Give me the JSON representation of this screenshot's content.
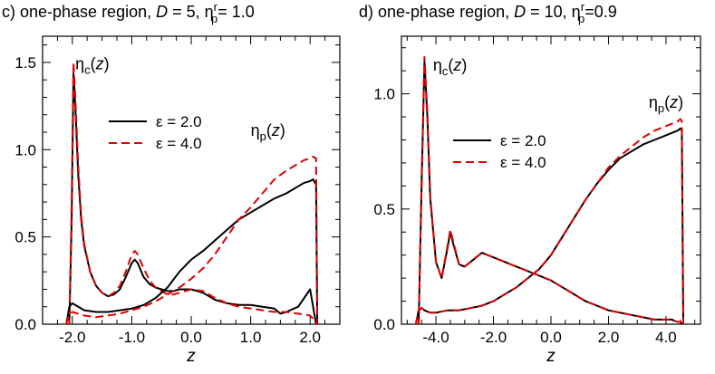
{
  "chart_data": [
    {
      "type": "line",
      "panel": "c",
      "title": {
        "prefix": "c) one-phase region, ",
        "param1_name": "D",
        "param1_value": " = 5, ",
        "param2_name": "η",
        "param2_sub": "p",
        "param2_sup": "r",
        "param2_value": "= 1.0"
      },
      "xlabel": "z",
      "ylabel": "",
      "xlim": [
        -2.5,
        2.5
      ],
      "ylim": [
        0,
        1.65
      ],
      "xticks": [
        -2.0,
        -1.0,
        0.0,
        1.0,
        2.0
      ],
      "xtick_labels": [
        "-2.0",
        "-1.0",
        "0.0",
        "1.0",
        "2.0"
      ],
      "yticks": [
        0.0,
        0.5,
        1.0,
        1.5
      ],
      "ytick_labels": [
        "0.0",
        "0.5",
        "1.0",
        "1.5"
      ],
      "annotations": [
        {
          "label_main": "η",
          "label_sub": "c",
          "label_arg": "(z)",
          "x": -1.95,
          "y": 1.46
        },
        {
          "label_main": "η",
          "label_sub": "p",
          "label_arg": "(z)",
          "x": 1.0,
          "y": 1.08
        }
      ],
      "legend": {
        "placement": "upper-center",
        "entries": [
          {
            "label": "ε = 2.0",
            "color": "#000000",
            "dash": "solid"
          },
          {
            "label": "ε = 4.0",
            "color": "#e00000",
            "dash": "dashed"
          }
        ]
      },
      "series": [
        {
          "name": "η_c(z), ε = 2.0",
          "color": "#000000",
          "dash": "solid",
          "x": [
            -2.1,
            -2.05,
            -2.01,
            -1.98,
            -1.95,
            -1.9,
            -1.85,
            -1.8,
            -1.7,
            -1.6,
            -1.5,
            -1.4,
            -1.3,
            -1.2,
            -1.1,
            -1.0,
            -0.95,
            -0.9,
            -0.8,
            -0.7,
            -0.6,
            -0.5,
            -0.4,
            -0.3,
            -0.2,
            0.0,
            0.2,
            0.4,
            0.6,
            0.8,
            1.0,
            1.2,
            1.4,
            1.5,
            1.6,
            1.8,
            2.0,
            2.05,
            2.1
          ],
          "y": [
            0.0,
            0.0,
            0.6,
            1.44,
            1.25,
            0.85,
            0.6,
            0.45,
            0.3,
            0.22,
            0.18,
            0.16,
            0.17,
            0.2,
            0.27,
            0.35,
            0.37,
            0.35,
            0.27,
            0.23,
            0.21,
            0.2,
            0.19,
            0.19,
            0.2,
            0.2,
            0.18,
            0.14,
            0.12,
            0.11,
            0.11,
            0.1,
            0.09,
            0.06,
            0.07,
            0.1,
            0.2,
            0.1,
            0.0
          ]
        },
        {
          "name": "η_c(z), ε = 4.0",
          "color": "#e00000",
          "dash": "dashed",
          "x": [
            -2.1,
            -2.05,
            -2.01,
            -1.98,
            -1.95,
            -1.9,
            -1.85,
            -1.8,
            -1.7,
            -1.6,
            -1.5,
            -1.4,
            -1.3,
            -1.2,
            -1.1,
            -1.0,
            -0.95,
            -0.9,
            -0.8,
            -0.7,
            -0.6,
            -0.5,
            -0.4,
            -0.3,
            -0.2,
            0.0,
            0.2,
            0.4,
            0.6,
            0.8,
            1.0,
            1.2,
            1.4,
            1.6,
            1.8,
            2.0,
            2.05,
            2.1
          ],
          "y": [
            0.0,
            0.0,
            0.7,
            1.5,
            1.3,
            0.9,
            0.62,
            0.46,
            0.3,
            0.22,
            0.18,
            0.16,
            0.18,
            0.22,
            0.3,
            0.4,
            0.42,
            0.4,
            0.32,
            0.25,
            0.21,
            0.19,
            0.17,
            0.17,
            0.18,
            0.2,
            0.19,
            0.15,
            0.12,
            0.1,
            0.09,
            0.08,
            0.07,
            0.07,
            0.06,
            0.05,
            0.03,
            0.0
          ]
        },
        {
          "name": "η_p(z), ε = 2.0",
          "color": "#000000",
          "dash": "solid",
          "x": [
            -2.1,
            -2.05,
            -2.0,
            -1.9,
            -1.8,
            -1.6,
            -1.4,
            -1.2,
            -1.0,
            -0.8,
            -0.6,
            -0.4,
            -0.2,
            0.0,
            0.2,
            0.4,
            0.6,
            0.8,
            1.0,
            1.2,
            1.4,
            1.6,
            1.8,
            1.9,
            2.0,
            2.05,
            2.1,
            2.12
          ],
          "y": [
            0.0,
            0.1,
            0.12,
            0.1,
            0.08,
            0.07,
            0.07,
            0.08,
            0.09,
            0.11,
            0.15,
            0.21,
            0.3,
            0.37,
            0.42,
            0.48,
            0.54,
            0.6,
            0.64,
            0.68,
            0.72,
            0.75,
            0.79,
            0.81,
            0.82,
            0.83,
            0.8,
            0.0
          ]
        },
        {
          "name": "η_p(z), ε = 4.0",
          "color": "#e00000",
          "dash": "dashed",
          "x": [
            -2.1,
            -2.05,
            -2.0,
            -1.9,
            -1.8,
            -1.6,
            -1.4,
            -1.2,
            -1.0,
            -0.8,
            -0.6,
            -0.4,
            -0.2,
            0.0,
            0.2,
            0.4,
            0.6,
            0.8,
            1.0,
            1.2,
            1.4,
            1.6,
            1.8,
            1.9,
            2.0,
            2.05,
            2.1,
            2.12
          ],
          "y": [
            0.0,
            0.06,
            0.07,
            0.06,
            0.05,
            0.04,
            0.05,
            0.06,
            0.08,
            0.1,
            0.13,
            0.17,
            0.21,
            0.26,
            0.32,
            0.4,
            0.5,
            0.6,
            0.67,
            0.75,
            0.83,
            0.88,
            0.92,
            0.94,
            0.95,
            0.96,
            0.95,
            0.0
          ]
        }
      ]
    },
    {
      "type": "line",
      "panel": "d",
      "title": {
        "prefix": "d) one-phase region, ",
        "param1_name": "D",
        "param1_value": " = 10, ",
        "param2_name": "η",
        "param2_sub": "p",
        "param2_sup": "r",
        "param2_value": "=0.9"
      },
      "xlabel": "z",
      "ylabel": "",
      "xlim": [
        -5.2,
        5.2
      ],
      "ylim": [
        0,
        1.25
      ],
      "xticks": [
        -4.0,
        -2.0,
        0.0,
        2.0,
        4.0
      ],
      "xtick_labels": [
        "-4.0",
        "-2.0",
        "0.0",
        "2.0",
        "4.0"
      ],
      "yticks": [
        0.0,
        0.5,
        1.0
      ],
      "ytick_labels": [
        "0.0",
        "0.5",
        "1.0"
      ],
      "annotations": [
        {
          "label_main": "η",
          "label_sub": "c",
          "label_arg": "(z)",
          "x": -4.1,
          "y": 1.1
        },
        {
          "label_main": "η",
          "label_sub": "p",
          "label_arg": "(z)",
          "x": 3.4,
          "y": 0.94
        }
      ],
      "legend": {
        "placement": "upper-center",
        "entries": [
          {
            "label": "ε = 2.0",
            "color": "#000000",
            "dash": "solid"
          },
          {
            "label": "ε = 4.0",
            "color": "#e00000",
            "dash": "dashed"
          }
        ]
      },
      "series": [
        {
          "name": "η_c(z), ε = 2.0",
          "color": "#000000",
          "dash": "solid",
          "x": [
            -4.7,
            -4.6,
            -4.5,
            -4.4,
            -4.3,
            -4.2,
            -4.0,
            -3.8,
            -3.6,
            -3.5,
            -3.4,
            -3.2,
            -3.0,
            -2.8,
            -2.6,
            -2.4,
            -2.2,
            -2.0,
            -1.8,
            -1.6,
            -1.4,
            -1.2,
            -1.0,
            -0.8,
            -0.6,
            -0.4,
            0.0,
            0.4,
            0.8,
            1.2,
            1.6,
            2.0,
            2.4,
            2.8,
            3.2,
            3.6,
            4.0,
            4.2,
            4.4,
            4.5,
            4.6
          ],
          "y": [
            0.0,
            0.0,
            0.6,
            1.14,
            0.9,
            0.55,
            0.27,
            0.2,
            0.33,
            0.4,
            0.35,
            0.26,
            0.25,
            0.27,
            0.29,
            0.31,
            0.3,
            0.29,
            0.28,
            0.27,
            0.26,
            0.25,
            0.24,
            0.23,
            0.22,
            0.21,
            0.19,
            0.16,
            0.13,
            0.1,
            0.08,
            0.06,
            0.05,
            0.04,
            0.03,
            0.02,
            0.02,
            0.02,
            0.01,
            0.01,
            0.0
          ]
        },
        {
          "name": "η_c(z), ε = 4.0",
          "color": "#e00000",
          "dash": "dashed",
          "x": [
            -4.7,
            -4.6,
            -4.5,
            -4.4,
            -4.3,
            -4.2,
            -4.0,
            -3.8,
            -3.6,
            -3.5,
            -3.4,
            -3.2,
            -3.0,
            -2.8,
            -2.6,
            -2.4,
            -2.2,
            -2.0,
            -1.8,
            -1.6,
            -1.4,
            -1.2,
            -1.0,
            -0.8,
            -0.6,
            -0.4,
            0.0,
            0.4,
            0.8,
            1.2,
            1.6,
            2.0,
            2.4,
            2.8,
            3.2,
            3.6,
            4.0,
            4.2,
            4.4,
            4.5,
            4.6
          ],
          "y": [
            0.0,
            0.0,
            0.62,
            1.16,
            0.92,
            0.56,
            0.27,
            0.2,
            0.34,
            0.41,
            0.36,
            0.26,
            0.25,
            0.27,
            0.29,
            0.31,
            0.3,
            0.29,
            0.28,
            0.27,
            0.26,
            0.25,
            0.24,
            0.23,
            0.22,
            0.21,
            0.19,
            0.16,
            0.13,
            0.1,
            0.08,
            0.06,
            0.05,
            0.04,
            0.03,
            0.02,
            0.02,
            0.02,
            0.01,
            0.01,
            0.0
          ]
        },
        {
          "name": "η_p(z), ε = 2.0",
          "color": "#000000",
          "dash": "solid",
          "x": [
            -4.7,
            -4.6,
            -4.5,
            -4.4,
            -4.2,
            -4.0,
            -3.6,
            -3.2,
            -2.8,
            -2.4,
            -2.0,
            -1.6,
            -1.2,
            -0.8,
            -0.4,
            0.0,
            0.4,
            0.8,
            1.2,
            1.6,
            2.0,
            2.4,
            2.8,
            3.2,
            3.6,
            4.0,
            4.2,
            4.4,
            4.5,
            4.55,
            4.6
          ],
          "y": [
            0.0,
            0.06,
            0.07,
            0.06,
            0.05,
            0.05,
            0.06,
            0.06,
            0.07,
            0.08,
            0.1,
            0.13,
            0.16,
            0.2,
            0.24,
            0.3,
            0.38,
            0.46,
            0.54,
            0.61,
            0.67,
            0.72,
            0.75,
            0.78,
            0.8,
            0.82,
            0.83,
            0.84,
            0.85,
            0.84,
            0.0
          ]
        },
        {
          "name": "η_p(z), ε = 4.0",
          "color": "#e00000",
          "dash": "dashed",
          "x": [
            -4.7,
            -4.6,
            -4.5,
            -4.4,
            -4.2,
            -4.0,
            -3.6,
            -3.2,
            -2.8,
            -2.4,
            -2.0,
            -1.6,
            -1.2,
            -0.8,
            -0.4,
            0.0,
            0.4,
            0.8,
            1.2,
            1.6,
            2.0,
            2.4,
            2.8,
            3.2,
            3.6,
            4.0,
            4.2,
            4.4,
            4.5,
            4.55,
            4.6
          ],
          "y": [
            0.0,
            0.06,
            0.07,
            0.06,
            0.05,
            0.05,
            0.06,
            0.06,
            0.07,
            0.08,
            0.1,
            0.13,
            0.16,
            0.2,
            0.24,
            0.3,
            0.38,
            0.46,
            0.54,
            0.61,
            0.68,
            0.73,
            0.77,
            0.81,
            0.84,
            0.86,
            0.87,
            0.88,
            0.89,
            0.88,
            0.0
          ]
        }
      ]
    }
  ]
}
